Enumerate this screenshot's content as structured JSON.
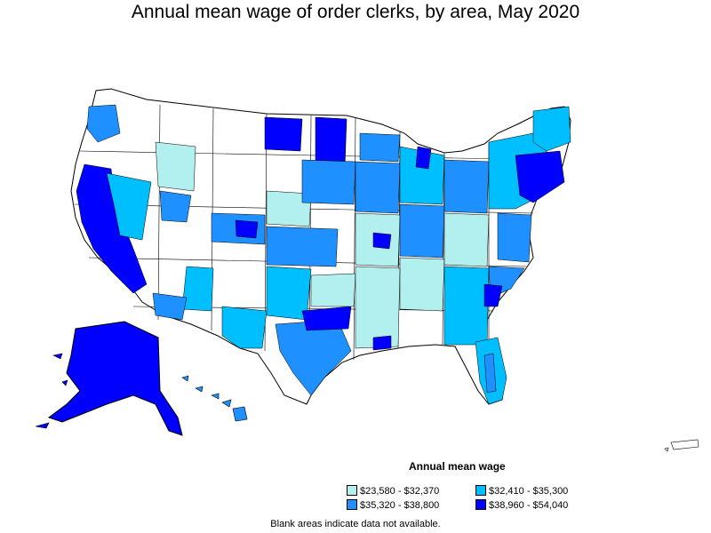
{
  "title": "Annual mean wage of order clerks, by area, May 2020",
  "legend": {
    "title": "Annual mean wage",
    "items": [
      {
        "label": "$23,580 - $32,370",
        "color": "#b2f0f0"
      },
      {
        "label": "$32,410 - $35,300",
        "color": "#00bfff"
      },
      {
        "label": "$35,320 - $38,800",
        "color": "#1e90ff"
      },
      {
        "label": "$38,960 - $54,040",
        "color": "#0000ff"
      }
    ]
  },
  "footnote": "Blank areas indicate data not available.",
  "colors": {
    "no_data": "#ffffff",
    "border": "#000000"
  }
}
